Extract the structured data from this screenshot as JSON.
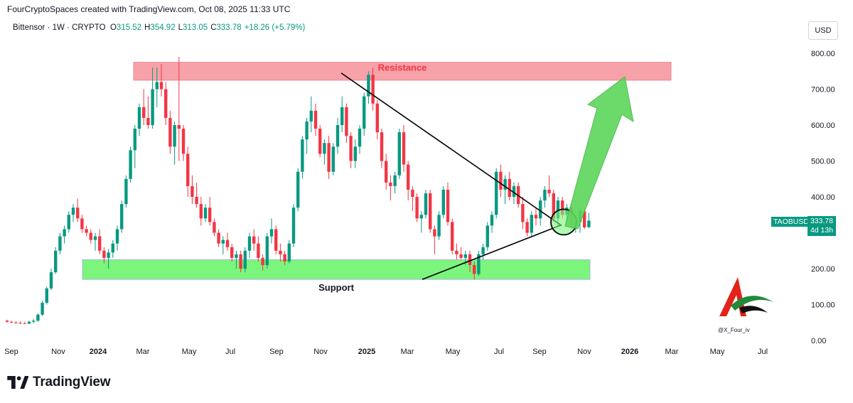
{
  "header": {
    "credit": "FourCryptoSpaces created with TradingView.com, Oct 08, 2025 11:33 UTC"
  },
  "legend": {
    "symbol": "Bittensor · 1W · CRYPTO",
    "o_label": "O",
    "o_value": "315.52",
    "h_label": "H",
    "h_value": "354.92",
    "l_label": "L",
    "l_value": "313.05",
    "c_label": "C",
    "c_value": "333.78",
    "change": "+18.26 (+5.79%)"
  },
  "currency_button": "USD",
  "price_tag": {
    "ticker": "TAOBUSD",
    "price": "333.78",
    "countdown": "4d 13h"
  },
  "footer": {
    "brand": "TradingView"
  },
  "watermark": {
    "handle": "@X_Four_iv"
  },
  "colors": {
    "up": "#089981",
    "down": "#F23645",
    "resistance_zone": "#F7A1A8",
    "support_zone": "#7CF57C",
    "arrow": "#5CD65C"
  },
  "chart_data": {
    "type": "candlestick",
    "series_name": "",
    "y_axis": {
      "ticks": [
        "0.00",
        "100.00",
        "200.00",
        "300.00",
        "400.00",
        "500.00",
        "600.00",
        "700.00",
        "800.00"
      ],
      "range": [
        0,
        800
      ]
    },
    "x_axis": {
      "ticks": [
        "Sep",
        "Nov",
        "2024",
        "Mar",
        "May",
        "Jul",
        "Sep",
        "Nov",
        "2025",
        "Mar",
        "May",
        "Jul",
        "Sep",
        "Nov",
        "2026",
        "Mar",
        "May",
        "Jul"
      ]
    },
    "annotations": {
      "resistance": {
        "label": "Resistance",
        "low": 725,
        "high": 775
      },
      "support": {
        "label": "Support",
        "low": 170,
        "high": 225
      },
      "descending_trendline": {
        "from": [
          "2024-12",
          745
        ],
        "to": [
          "2025-10",
          320
        ]
      },
      "ascending_trendline": {
        "from": [
          "2025-04",
          170
        ],
        "to": [
          "2025-10",
          320
        ]
      },
      "projection_arrow": {
        "target": 750
      }
    },
    "candles": [
      [
        55,
        58,
        50,
        52
      ],
      [
        52,
        55,
        48,
        50
      ],
      [
        50,
        54,
        47,
        49
      ],
      [
        49,
        53,
        46,
        48
      ],
      [
        48,
        52,
        46,
        47
      ],
      [
        47,
        55,
        45,
        52
      ],
      [
        52,
        60,
        48,
        55
      ],
      [
        55,
        75,
        52,
        72
      ],
      [
        72,
        110,
        68,
        105
      ],
      [
        105,
        150,
        100,
        145
      ],
      [
        145,
        200,
        140,
        190
      ],
      [
        190,
        260,
        185,
        250
      ],
      [
        250,
        300,
        240,
        290
      ],
      [
        290,
        320,
        270,
        310
      ],
      [
        310,
        360,
        300,
        350
      ],
      [
        350,
        380,
        330,
        370
      ],
      [
        370,
        395,
        330,
        340
      ],
      [
        340,
        350,
        300,
        310
      ],
      [
        310,
        320,
        290,
        300
      ],
      [
        300,
        310,
        270,
        280
      ],
      [
        280,
        300,
        250,
        290
      ],
      [
        290,
        310,
        240,
        250
      ],
      [
        250,
        260,
        215,
        230
      ],
      [
        230,
        255,
        200,
        245
      ],
      [
        245,
        280,
        230,
        270
      ],
      [
        270,
        320,
        250,
        310
      ],
      [
        310,
        390,
        300,
        380
      ],
      [
        380,
        460,
        370,
        450
      ],
      [
        450,
        540,
        440,
        530
      ],
      [
        530,
        600,
        480,
        590
      ],
      [
        590,
        660,
        570,
        650
      ],
      [
        650,
        700,
        600,
        620
      ],
      [
        620,
        680,
        590,
        600
      ],
      [
        600,
        760,
        590,
        700
      ],
      [
        700,
        760,
        650,
        720
      ],
      [
        720,
        770,
        680,
        700
      ],
      [
        700,
        720,
        600,
        620
      ],
      [
        620,
        640,
        520,
        540
      ],
      [
        540,
        610,
        490,
        600
      ],
      [
        600,
        790,
        500,
        590
      ],
      [
        590,
        600,
        500,
        520
      ],
      [
        520,
        540,
        400,
        430
      ],
      [
        430,
        460,
        380,
        400
      ],
      [
        400,
        440,
        370,
        380
      ],
      [
        380,
        400,
        320,
        340
      ],
      [
        340,
        380,
        330,
        370
      ],
      [
        370,
        400,
        320,
        330
      ],
      [
        330,
        340,
        290,
        300
      ],
      [
        300,
        310,
        260,
        270
      ],
      [
        270,
        290,
        240,
        280
      ],
      [
        280,
        300,
        250,
        260
      ],
      [
        260,
        270,
        220,
        230
      ],
      [
        230,
        250,
        200,
        240
      ],
      [
        240,
        250,
        190,
        200
      ],
      [
        200,
        260,
        190,
        250
      ],
      [
        250,
        300,
        230,
        290
      ],
      [
        290,
        310,
        250,
        270
      ],
      [
        270,
        290,
        220,
        230
      ],
      [
        230,
        240,
        195,
        210
      ],
      [
        210,
        300,
        200,
        290
      ],
      [
        290,
        340,
        270,
        310
      ],
      [
        310,
        320,
        240,
        250
      ],
      [
        250,
        270,
        220,
        240
      ],
      [
        240,
        250,
        210,
        220
      ],
      [
        220,
        280,
        215,
        270
      ],
      [
        270,
        380,
        260,
        370
      ],
      [
        370,
        480,
        360,
        470
      ],
      [
        470,
        570,
        450,
        560
      ],
      [
        560,
        620,
        520,
        610
      ],
      [
        610,
        680,
        580,
        640
      ],
      [
        640,
        660,
        570,
        590
      ],
      [
        590,
        600,
        510,
        520
      ],
      [
        520,
        560,
        490,
        550
      ],
      [
        550,
        570,
        450,
        470
      ],
      [
        470,
        550,
        460,
        540
      ],
      [
        540,
        620,
        520,
        600
      ],
      [
        600,
        680,
        580,
        650
      ],
      [
        650,
        660,
        550,
        570
      ],
      [
        570,
        580,
        480,
        500
      ],
      [
        500,
        560,
        480,
        540
      ],
      [
        540,
        600,
        520,
        590
      ],
      [
        590,
        690,
        570,
        680
      ],
      [
        680,
        750,
        660,
        740
      ],
      [
        740,
        760,
        640,
        660
      ],
      [
        660,
        670,
        560,
        580
      ],
      [
        580,
        590,
        480,
        500
      ],
      [
        500,
        520,
        420,
        440
      ],
      [
        440,
        460,
        390,
        430
      ],
      [
        430,
        470,
        410,
        460
      ],
      [
        460,
        590,
        450,
        580
      ],
      [
        580,
        600,
        470,
        490
      ],
      [
        490,
        500,
        390,
        420
      ],
      [
        420,
        430,
        360,
        400
      ],
      [
        400,
        410,
        330,
        340
      ],
      [
        340,
        360,
        300,
        350
      ],
      [
        350,
        420,
        340,
        410
      ],
      [
        410,
        420,
        300,
        310
      ],
      [
        310,
        320,
        240,
        290
      ],
      [
        290,
        360,
        280,
        350
      ],
      [
        350,
        430,
        340,
        420
      ],
      [
        420,
        440,
        320,
        330
      ],
      [
        330,
        340,
        240,
        250
      ],
      [
        250,
        270,
        225,
        240
      ],
      [
        240,
        260,
        225,
        230
      ],
      [
        230,
        250,
        210,
        240
      ],
      [
        240,
        250,
        190,
        210
      ],
      [
        210,
        220,
        170,
        185
      ],
      [
        185,
        250,
        180,
        240
      ],
      [
        240,
        270,
        225,
        260
      ],
      [
        260,
        330,
        250,
        320
      ],
      [
        320,
        360,
        300,
        350
      ],
      [
        350,
        480,
        340,
        470
      ],
      [
        470,
        490,
        400,
        420
      ],
      [
        420,
        460,
        380,
        450
      ],
      [
        450,
        470,
        390,
        400
      ],
      [
        400,
        440,
        380,
        430
      ],
      [
        430,
        440,
        370,
        380
      ],
      [
        380,
        400,
        310,
        330
      ],
      [
        330,
        340,
        290,
        300
      ],
      [
        300,
        360,
        290,
        350
      ],
      [
        350,
        370,
        320,
        340
      ],
      [
        340,
        400,
        320,
        390
      ],
      [
        390,
        430,
        370,
        420
      ],
      [
        420,
        460,
        400,
        410
      ],
      [
        410,
        420,
        330,
        340
      ],
      [
        340,
        400,
        320,
        390
      ],
      [
        390,
        400,
        340,
        350
      ],
      [
        350,
        380,
        330,
        370
      ],
      [
        370,
        380,
        310,
        320
      ],
      [
        320,
        340,
        300,
        330
      ],
      [
        330,
        370,
        300,
        360
      ],
      [
        360,
        370,
        310,
        315
      ],
      [
        315.52,
        354.92,
        313.05,
        333.78
      ]
    ]
  }
}
